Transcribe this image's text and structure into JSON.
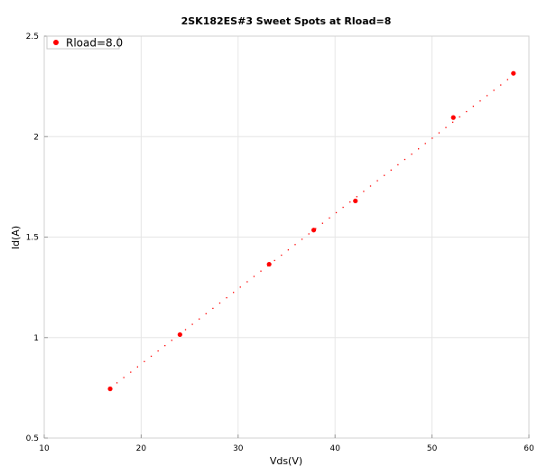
{
  "chart_data": {
    "type": "scatter",
    "title": "2SK182ES#3 Sweet Spots at Rload=8",
    "xlabel": "Vds(V)",
    "ylabel": "Id(A)",
    "xlim": [
      10,
      60
    ],
    "ylim": [
      0.5,
      2.5
    ],
    "xticks": [
      "10",
      "20",
      "30",
      "40",
      "50",
      "60"
    ],
    "yticks": [
      "0.5",
      "1",
      "1.5",
      "2",
      "2.5"
    ],
    "grid": true,
    "legend_position": "top-left",
    "series": [
      {
        "name": "Rload=8.0",
        "color": "#ff0000",
        "points": [
          {
            "x": 16.8,
            "y": 0.745
          },
          {
            "x": 24.0,
            "y": 1.015
          },
          {
            "x": 33.2,
            "y": 1.365
          },
          {
            "x": 37.8,
            "y": 1.535
          },
          {
            "x": 42.1,
            "y": 1.68
          },
          {
            "x": 52.2,
            "y": 2.095
          },
          {
            "x": 58.4,
            "y": 2.315
          }
        ]
      }
    ],
    "load_line": {
      "color": "#ff0000",
      "style": "dotted",
      "from": {
        "x": 17.5,
        "y": 0.775
      },
      "to": {
        "x": 58.5,
        "y": 2.31
      }
    }
  }
}
